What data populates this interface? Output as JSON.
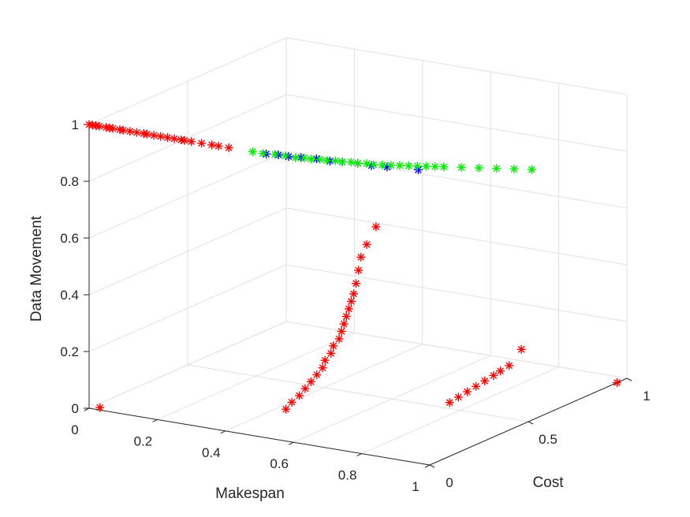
{
  "chart_data": {
    "type": "scatter3d",
    "title": "",
    "xlabel": "Makespan",
    "ylabel": "Cost",
    "zlabel": "Data Movement",
    "xlim": [
      0,
      1
    ],
    "ylim": [
      0,
      1
    ],
    "zlim": [
      0,
      1
    ],
    "xticks": [
      "0",
      "0.2",
      "0.4",
      "0.6",
      "0.8",
      "1"
    ],
    "yticks": [
      "0",
      "0.5",
      "1"
    ],
    "zticks": [
      "0",
      "0.2",
      "0.4",
      "0.6",
      "0.8",
      "1"
    ],
    "grid": true,
    "marker": "asterisk",
    "series": [
      {
        "color": "#ff0000",
        "points": [
          [
            0.0,
            0.0,
            1.0
          ],
          [
            0.01,
            0.0,
            1.0
          ],
          [
            0.02,
            0.0,
            1.0
          ],
          [
            0.03,
            0.0,
            1.0
          ],
          [
            0.05,
            0.0,
            1.0
          ],
          [
            0.06,
            0.0,
            1.0
          ],
          [
            0.07,
            0.0,
            1.0
          ],
          [
            0.09,
            0.0,
            1.0
          ],
          [
            0.1,
            0.0,
            1.0
          ],
          [
            0.12,
            0.0,
            1.0
          ],
          [
            0.14,
            0.0,
            1.0
          ],
          [
            0.16,
            0.0,
            1.0
          ],
          [
            0.17,
            0.0,
            1.0
          ],
          [
            0.19,
            0.0,
            1.0
          ],
          [
            0.21,
            0.0,
            1.0
          ],
          [
            0.23,
            0.0,
            1.0
          ],
          [
            0.25,
            0.0,
            1.0
          ],
          [
            0.27,
            0.0,
            1.0
          ],
          [
            0.28,
            0.0,
            1.0
          ],
          [
            0.3,
            0.0,
            1.0
          ],
          [
            0.33,
            0.0,
            1.0
          ],
          [
            0.36,
            0.0,
            1.0
          ],
          [
            0.38,
            0.0,
            1.0
          ],
          [
            0.41,
            0.0,
            1.0
          ],
          [
            0.02,
            0.02,
            0.0
          ],
          [
            0.465,
            0.195,
            0.03
          ],
          [
            0.485,
            0.19,
            0.06
          ],
          [
            0.51,
            0.185,
            0.09
          ],
          [
            0.53,
            0.18,
            0.12
          ],
          [
            0.55,
            0.175,
            0.15
          ],
          [
            0.57,
            0.17,
            0.18
          ],
          [
            0.59,
            0.165,
            0.21
          ],
          [
            0.6,
            0.16,
            0.24
          ],
          [
            0.62,
            0.155,
            0.27
          ],
          [
            0.63,
            0.15,
            0.3
          ],
          [
            0.65,
            0.145,
            0.33
          ],
          [
            0.66,
            0.14,
            0.36
          ],
          [
            0.67,
            0.135,
            0.39
          ],
          [
            0.68,
            0.13,
            0.42
          ],
          [
            0.69,
            0.125,
            0.45
          ],
          [
            0.7,
            0.12,
            0.48
          ],
          [
            0.71,
            0.115,
            0.51
          ],
          [
            0.72,
            0.11,
            0.55
          ],
          [
            0.73,
            0.105,
            0.6
          ],
          [
            0.74,
            0.1,
            0.65
          ],
          [
            0.76,
            0.095,
            0.7
          ],
          [
            0.79,
            0.09,
            0.77
          ],
          [
            0.74,
            0.55,
            0.0
          ],
          [
            0.76,
            0.56,
            0.02
          ],
          [
            0.78,
            0.57,
            0.04
          ],
          [
            0.8,
            0.58,
            0.06
          ],
          [
            0.82,
            0.59,
            0.08
          ],
          [
            0.84,
            0.6,
            0.1
          ],
          [
            0.86,
            0.6,
            0.12
          ],
          [
            0.88,
            0.61,
            0.14
          ],
          [
            0.91,
            0.62,
            0.2
          ],
          [
            1.0,
            0.95,
            0.0
          ]
        ]
      },
      {
        "color": "#0000ff",
        "points": [
          [
            0.52,
            0.0,
            1.0
          ],
          [
            0.55,
            0.01,
            1.0
          ],
          [
            0.58,
            0.01,
            1.0
          ],
          [
            0.61,
            0.02,
            1.0
          ],
          [
            0.65,
            0.03,
            1.0
          ],
          [
            0.69,
            0.03,
            1.0
          ],
          [
            0.72,
            0.04,
            1.0
          ],
          [
            0.76,
            0.05,
            1.0
          ],
          [
            0.8,
            0.05,
            1.0
          ],
          [
            0.84,
            0.06,
            1.0
          ],
          [
            0.92,
            0.08,
            1.0
          ]
        ]
      },
      {
        "color": "#00ee00",
        "points": [
          [
            0.48,
            0.0,
            1.0
          ],
          [
            0.51,
            0.0,
            1.0
          ],
          [
            0.54,
            0.01,
            1.0
          ],
          [
            0.57,
            0.01,
            1.0
          ],
          [
            0.6,
            0.01,
            1.0
          ],
          [
            0.62,
            0.02,
            1.0
          ],
          [
            0.64,
            0.02,
            1.0
          ],
          [
            0.66,
            0.03,
            1.0
          ],
          [
            0.68,
            0.03,
            1.0
          ],
          [
            0.7,
            0.04,
            1.0
          ],
          [
            0.72,
            0.04,
            1.0
          ],
          [
            0.74,
            0.05,
            1.0
          ],
          [
            0.76,
            0.05,
            1.0
          ],
          [
            0.78,
            0.06,
            1.0
          ],
          [
            0.8,
            0.06,
            1.0
          ],
          [
            0.82,
            0.07,
            1.0
          ],
          [
            0.84,
            0.08,
            1.0
          ],
          [
            0.86,
            0.09,
            1.0
          ],
          [
            0.88,
            0.1,
            1.0
          ],
          [
            0.9,
            0.11,
            1.0
          ],
          [
            0.92,
            0.12,
            1.0
          ],
          [
            0.94,
            0.13,
            1.0
          ],
          [
            0.96,
            0.14,
            1.0
          ],
          [
            1.0,
            0.16,
            1.0
          ],
          [
            1.04,
            0.18,
            1.0
          ],
          [
            1.08,
            0.2,
            1.0
          ],
          [
            1.12,
            0.22,
            1.0
          ],
          [
            1.16,
            0.24,
            1.0
          ]
        ]
      }
    ]
  }
}
